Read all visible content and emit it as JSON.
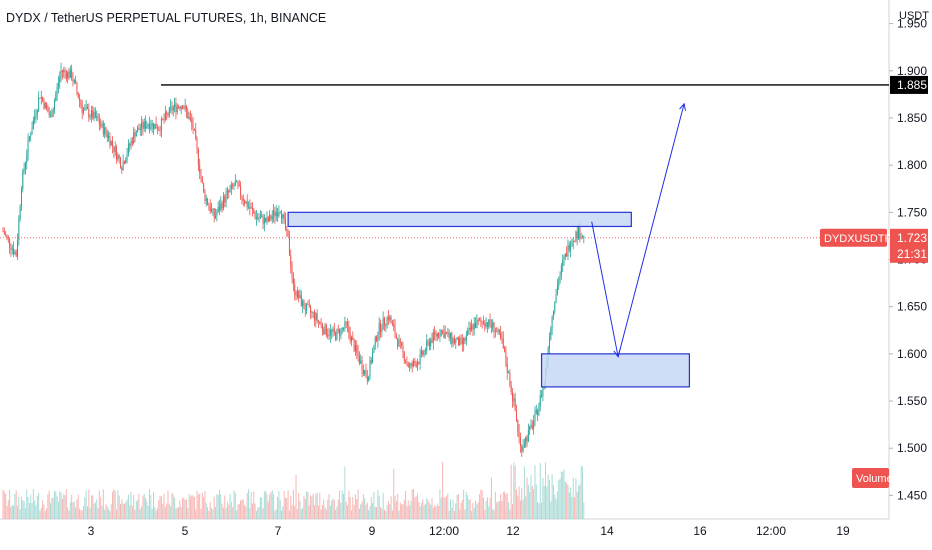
{
  "chart_data": {
    "type": "candlestick",
    "title": "DYDX / TetherUS PERPETUAL FUTURES, 1h, BINANCE",
    "currency": "USDT",
    "ylim": [
      1.425,
      1.975
    ],
    "y_ticks": [
      "1.950",
      "1.900",
      "1.850",
      "1.800",
      "1.750",
      "1.700",
      "1.650",
      "1.600",
      "1.550",
      "1.500",
      "1.450"
    ],
    "x_ticks": [
      "3",
      "5",
      "7",
      "9",
      "12:00",
      "12",
      "14",
      "16",
      "12:00",
      "19"
    ],
    "colors": {
      "up": "#26a69a",
      "down": "#ef5350",
      "line": "#000000",
      "arrow": "#1d2fe5",
      "zone_fill": "#c7d7f5",
      "zone_border": "#2536d6"
    },
    "price_points": [
      {
        "i": 0,
        "p": 1.73
      },
      {
        "i": 6,
        "p": 1.715
      },
      {
        "i": 10,
        "p": 1.705
      },
      {
        "i": 14,
        "p": 1.78
      },
      {
        "i": 20,
        "p": 1.83
      },
      {
        "i": 28,
        "p": 1.875
      },
      {
        "i": 36,
        "p": 1.85
      },
      {
        "i": 44,
        "p": 1.9
      },
      {
        "i": 52,
        "p": 1.895
      },
      {
        "i": 60,
        "p": 1.86
      },
      {
        "i": 70,
        "p": 1.85
      },
      {
        "i": 80,
        "p": 1.83
      },
      {
        "i": 90,
        "p": 1.8
      },
      {
        "i": 100,
        "p": 1.835
      },
      {
        "i": 110,
        "p": 1.845
      },
      {
        "i": 118,
        "p": 1.84
      },
      {
        "i": 128,
        "p": 1.86
      },
      {
        "i": 136,
        "p": 1.865
      },
      {
        "i": 144,
        "p": 1.84
      },
      {
        "i": 152,
        "p": 1.77
      },
      {
        "i": 160,
        "p": 1.745
      },
      {
        "i": 168,
        "p": 1.765
      },
      {
        "i": 176,
        "p": 1.78
      },
      {
        "i": 184,
        "p": 1.76
      },
      {
        "i": 192,
        "p": 1.745
      },
      {
        "i": 200,
        "p": 1.74
      },
      {
        "i": 210,
        "p": 1.755
      },
      {
        "i": 216,
        "p": 1.72
      },
      {
        "i": 220,
        "p": 1.67
      },
      {
        "i": 228,
        "p": 1.65
      },
      {
        "i": 236,
        "p": 1.64
      },
      {
        "i": 244,
        "p": 1.625
      },
      {
        "i": 252,
        "p": 1.62
      },
      {
        "i": 260,
        "p": 1.63
      },
      {
        "i": 268,
        "p": 1.6
      },
      {
        "i": 276,
        "p": 1.575
      },
      {
        "i": 284,
        "p": 1.625
      },
      {
        "i": 292,
        "p": 1.64
      },
      {
        "i": 300,
        "p": 1.61
      },
      {
        "i": 308,
        "p": 1.585
      },
      {
        "i": 316,
        "p": 1.595
      },
      {
        "i": 324,
        "p": 1.615
      },
      {
        "i": 332,
        "p": 1.625
      },
      {
        "i": 340,
        "p": 1.615
      },
      {
        "i": 348,
        "p": 1.61
      },
      {
        "i": 356,
        "p": 1.63
      },
      {
        "i": 364,
        "p": 1.635
      },
      {
        "i": 372,
        "p": 1.628
      },
      {
        "i": 378,
        "p": 1.612
      },
      {
        "i": 384,
        "p": 1.57
      },
      {
        "i": 388,
        "p": 1.54
      },
      {
        "i": 392,
        "p": 1.5
      },
      {
        "i": 398,
        "p": 1.515
      },
      {
        "i": 404,
        "p": 1.535
      },
      {
        "i": 410,
        "p": 1.57
      },
      {
        "i": 414,
        "p": 1.62
      },
      {
        "i": 418,
        "p": 1.66
      },
      {
        "i": 424,
        "p": 1.695
      },
      {
        "i": 430,
        "p": 1.72
      },
      {
        "i": 436,
        "p": 1.73
      },
      {
        "i": 440,
        "p": 1.723
      }
    ],
    "horizontal_line": {
      "price": 1.885,
      "label": "1.885"
    },
    "current_price": {
      "symbol": "DYDXUSDTPERP",
      "price": "1.723",
      "countdown": "21:31"
    },
    "zones": [
      {
        "name": "resistance-zone",
        "top": 1.75,
        "bottom": 1.735,
        "from_index": 216,
        "to_index": 476
      },
      {
        "name": "support-zone",
        "top": 1.6,
        "bottom": 1.565,
        "from_index": 408,
        "to_index": 520
      }
    ],
    "projection_path": [
      {
        "i": 446,
        "p": 1.74
      },
      {
        "i": 466,
        "p": 1.597
      },
      {
        "i": 516,
        "p": 1.865
      }
    ],
    "volume_label": "Volume"
  }
}
